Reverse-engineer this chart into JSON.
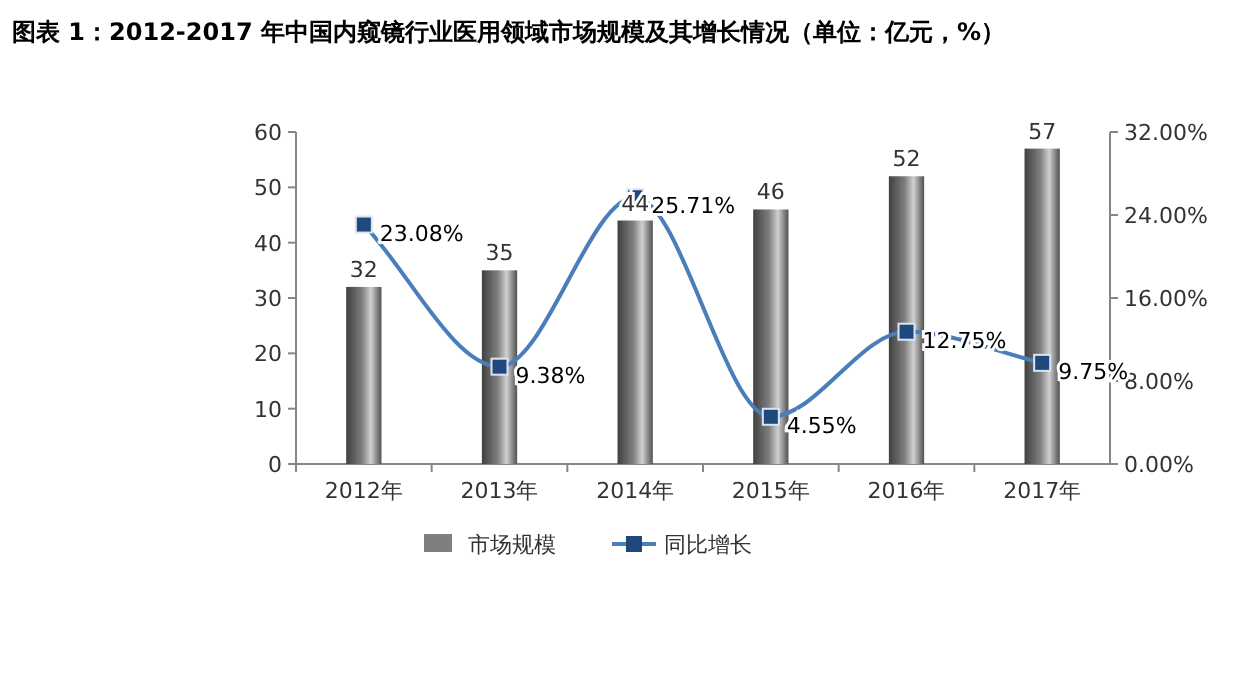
{
  "chart_data": {
    "type": "bar",
    "title": "图表 1：2012-2017 年中国内窥镜行业医用领域市场规模及其增长情况（单位：亿元，%）",
    "categories": [
      "2012年",
      "2013年",
      "2014年",
      "2015年",
      "2016年",
      "2017年"
    ],
    "series": [
      {
        "name": "市场规模",
        "color": "#7f7f7f",
        "values": [
          32,
          35,
          44,
          46,
          52,
          57
        ]
      },
      {
        "name": "同比增长",
        "type": "line",
        "axis": "y2",
        "color": "#4a7ebb",
        "marker": "square",
        "values": [
          23.08,
          9.38,
          25.71,
          4.55,
          12.75,
          9.75
        ],
        "value_labels": [
          "23.08%",
          "9.38%",
          "25.71%",
          "4.55%",
          "12.75%",
          "9.75%"
        ]
      }
    ],
    "ylim": [
      0,
      60
    ],
    "yticks": [
      0,
      10,
      20,
      30,
      40,
      50,
      60
    ],
    "y2lim": [
      0,
      32
    ],
    "y2ticks": [
      {
        "value": 0,
        "label": "0.00%"
      },
      {
        "value": 8,
        "label": "8.00%"
      },
      {
        "value": 16,
        "label": "16.00%"
      },
      {
        "value": 24,
        "label": "24.00%"
      },
      {
        "value": 32,
        "label": "32.00%"
      }
    ],
    "data_labels": true,
    "legend": "bottom",
    "grid": false
  }
}
